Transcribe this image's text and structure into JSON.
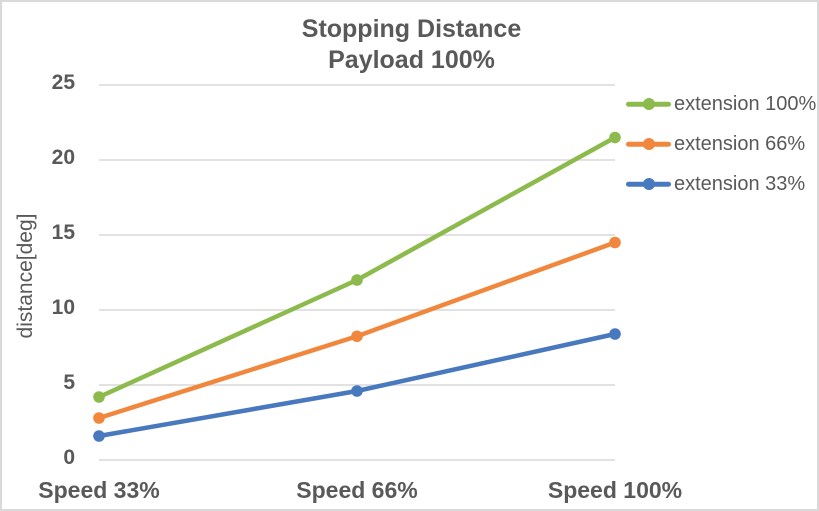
{
  "chart_data": {
    "type": "line",
    "title": "Stopping Distance",
    "subtitle": "Payload 100%",
    "ylabel": "distance[deg]",
    "xlabel": "",
    "categories": [
      "Speed 33%",
      "Speed 66%",
      "Speed 100%"
    ],
    "series": [
      {
        "name": "extension 100%",
        "color": "#8dba4c",
        "values": [
          4.2,
          12.0,
          21.5
        ]
      },
      {
        "name": "extension 66%",
        "color": "#f0873d",
        "values": [
          2.8,
          8.25,
          14.5
        ]
      },
      {
        "name": "extension 33%",
        "color": "#4878be",
        "values": [
          1.6,
          4.6,
          8.4
        ]
      }
    ],
    "yticks": [
      0,
      5,
      10,
      15,
      20,
      25
    ],
    "ylim": [
      0,
      25
    ],
    "grid": "horizontal",
    "legend_position": "right",
    "colors": {
      "grid_line": "#d9d9d9",
      "chart_border": "#d9d9d9",
      "text": "#595959",
      "background": "#ffffff"
    }
  }
}
